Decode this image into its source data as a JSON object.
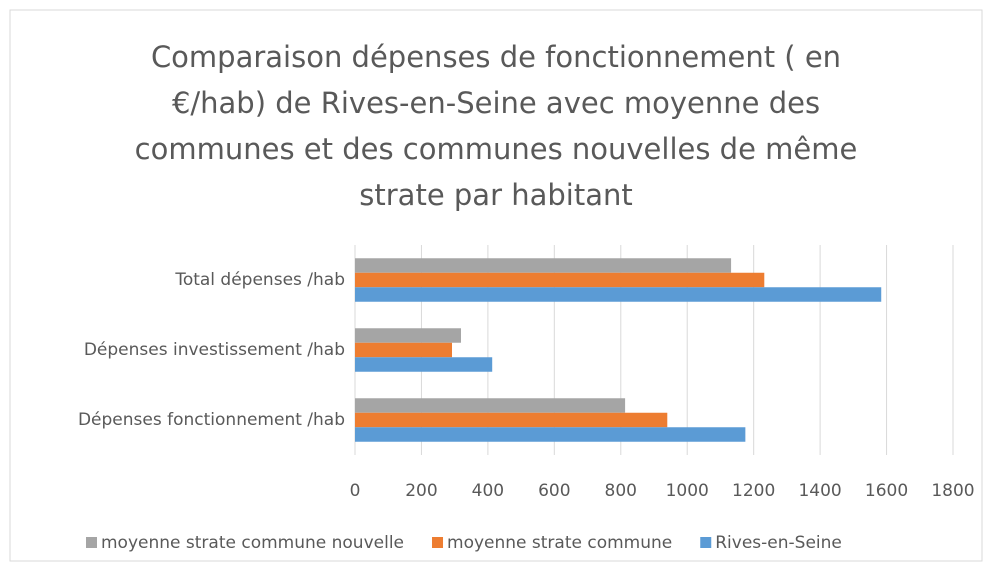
{
  "chart_data": {
    "type": "hbar",
    "title": "Comparaison dépenses de fonctionnement ( en €/hab) de Rives-en-Seine avec moyenne des communes et des communes nouvelles de même strate par habitant",
    "categories": [
      "Total dépenses /hab",
      "Dépenses investissement /hab",
      "Dépenses fonctionnement /hab"
    ],
    "series": [
      {
        "name": "moyenne strate commune nouvelle",
        "color": "#a5a5a5",
        "values": [
          1132,
          319,
          813
        ]
      },
      {
        "name": "moyenne strate commune",
        "color": "#ed7d31",
        "values": [
          1232,
          292,
          940
        ]
      },
      {
        "name": "Rives-en-Seine",
        "color": "#5b9bd5",
        "values": [
          1584,
          413,
          1175
        ]
      }
    ],
    "xlim": [
      0,
      1800
    ],
    "xticks": [
      0,
      200,
      400,
      600,
      800,
      1000,
      1200,
      1400,
      1600,
      1800
    ],
    "grid": true,
    "legend": "bottom"
  }
}
